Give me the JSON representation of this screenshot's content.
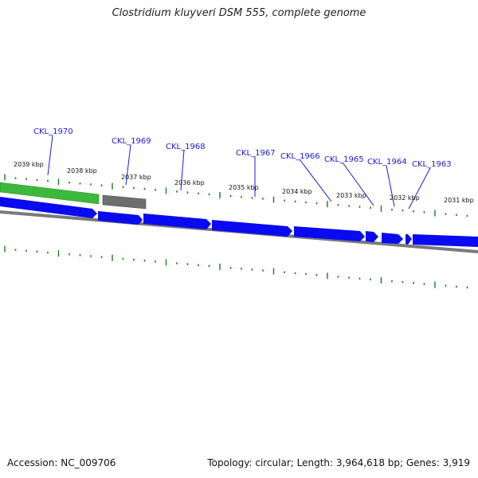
{
  "title": "Clostridium kluyveri DSM 555, complete genome",
  "footer": {
    "accession": "Accession: NC_009706",
    "summary": "Topology: circular; Length: 3,964,618 bp; Genes: 3,919"
  },
  "colors": {
    "cds": "#0a0af0",
    "rna": "#3cb83c",
    "pseudo": "#6e6e6e",
    "backbone": "#7a7a7a",
    "tick": "#1a7a1a",
    "gene_label": "#1a1ad4"
  },
  "genes": [
    {
      "name": "CKL_1970",
      "type": "rna"
    },
    {
      "name": "CKL_1969",
      "type": "pseudo"
    },
    {
      "name": "CKL_1968",
      "type": "cds"
    },
    {
      "name": "CKL_1967",
      "type": "cds"
    },
    {
      "name": "CKL_1966",
      "type": "cds"
    },
    {
      "name": "CKL_1965",
      "type": "cds"
    },
    {
      "name": "CKL_1964",
      "type": "cds"
    },
    {
      "name": "CKL_1963",
      "type": "cds"
    }
  ],
  "scale_labels": [
    "2039 kbp",
    "2038 kbp",
    "2037 kbp",
    "2036 kbp",
    "2035 kbp",
    "2034 kbp",
    "2033 kbp",
    "2032 kbp",
    "2031 kbp"
  ]
}
